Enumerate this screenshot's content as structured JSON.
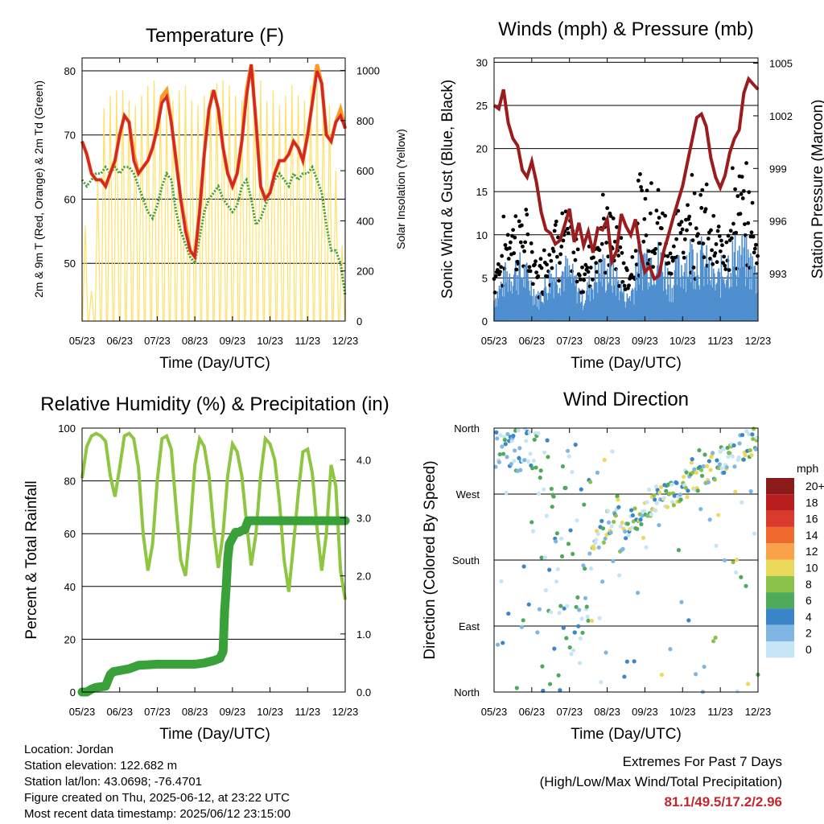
{
  "chart_data": [
    {
      "type": "line",
      "title": "Temperature (F)",
      "xlabel": "Time (Day/UTC)",
      "ylabel": "2m & 9m T (Red, Orange) & 2m Td (Green)",
      "y2label": "Solar Insolation (Yellow)",
      "x_ticks": [
        "05/23",
        "06/23",
        "07/23",
        "08/23",
        "09/23",
        "10/23",
        "11/23",
        "12/23"
      ],
      "ylim": [
        41,
        82
      ],
      "y_ticks": [
        50,
        60,
        70,
        80
      ],
      "y2lim": [
        0,
        1050
      ],
      "y2_ticks": [
        0,
        200,
        400,
        600,
        800,
        1000
      ],
      "series": [
        {
          "color": "#d62728",
          "x": [
            0,
            3,
            6,
            9,
            12,
            15,
            18,
            21,
            24,
            27,
            30,
            33,
            36,
            39,
            42,
            45,
            48,
            51,
            54,
            57,
            60,
            63,
            66,
            69,
            72,
            75,
            78,
            81,
            84,
            87,
            90,
            93,
            96,
            99,
            102,
            105,
            108,
            111,
            114,
            117,
            120,
            123,
            126,
            129,
            132,
            135,
            138,
            141,
            144,
            147,
            150,
            153,
            156,
            159,
            162,
            165,
            168
          ],
          "values": [
            69,
            67,
            64,
            63,
            63,
            62,
            64,
            66,
            70,
            73,
            72,
            66,
            64,
            65,
            66,
            68,
            71,
            75,
            76,
            72,
            66,
            60,
            55,
            52,
            51,
            58,
            67,
            74,
            77,
            74,
            68,
            64,
            62,
            64,
            69,
            76,
            81,
            72,
            62,
            60,
            61,
            64,
            66,
            66,
            67,
            69,
            68,
            66,
            70,
            75,
            80,
            78,
            70,
            69,
            72,
            73,
            71
          ]
        },
        {
          "color": "#ff9a1e",
          "x": [
            0,
            3,
            6,
            9,
            12,
            15,
            18,
            21,
            24,
            27,
            30,
            33,
            36,
            39,
            42,
            45,
            48,
            51,
            54,
            57,
            60,
            63,
            66,
            69,
            72,
            75,
            78,
            81,
            84,
            87,
            90,
            93,
            96,
            99,
            102,
            105,
            108,
            111,
            114,
            117,
            120,
            123,
            126,
            129,
            132,
            135,
            138,
            141,
            144,
            147,
            150,
            153,
            156,
            159,
            162,
            165,
            168
          ],
          "values": [
            69,
            67,
            64,
            63,
            63,
            62,
            64,
            66,
            70,
            73,
            72,
            67,
            64,
            65,
            66,
            68,
            71,
            76,
            77,
            72,
            66,
            60,
            56,
            52,
            51,
            58,
            67,
            74,
            77,
            74,
            68,
            64,
            62,
            64,
            69,
            77,
            81,
            72,
            62,
            60,
            61,
            64,
            66,
            66,
            67,
            69,
            68,
            66,
            70,
            75,
            81,
            78,
            70,
            69,
            72,
            74,
            71
          ]
        },
        {
          "color": "#3aa13a",
          "x": [
            0,
            3,
            6,
            9,
            12,
            15,
            18,
            21,
            24,
            27,
            30,
            33,
            36,
            39,
            42,
            45,
            48,
            51,
            54,
            57,
            60,
            63,
            66,
            69,
            72,
            75,
            78,
            81,
            84,
            87,
            90,
            93,
            96,
            99,
            102,
            105,
            108,
            111,
            114,
            117,
            120,
            123,
            126,
            129,
            132,
            135,
            138,
            141,
            144,
            147,
            150,
            153,
            156,
            159,
            162,
            165,
            168
          ],
          "values": [
            63,
            62,
            63,
            64,
            64,
            65,
            64,
            65,
            64,
            65,
            65,
            64,
            62,
            60,
            58,
            57,
            59,
            62,
            64,
            63,
            58,
            55,
            53,
            51,
            50,
            54,
            58,
            60,
            61,
            62,
            60,
            59,
            58,
            59,
            62,
            63,
            60,
            56,
            57,
            59,
            61,
            63,
            64,
            63,
            62,
            64,
            63,
            64,
            64,
            65,
            63,
            61,
            56,
            52,
            52,
            50,
            45
          ]
        },
        {
          "color": "#ffe066",
          "axis": "y2",
          "x": [
            2,
            6,
            10,
            14,
            18,
            22,
            26,
            30,
            34,
            38,
            42,
            46,
            50,
            54,
            58,
            62,
            66,
            70,
            74,
            78,
            82,
            86,
            90,
            94,
            98,
            102,
            106,
            110,
            114,
            118,
            122,
            126,
            130,
            134,
            138,
            142,
            146,
            150,
            154,
            158,
            162,
            166
          ],
          "values": [
            380,
            120,
            560,
            850,
            900,
            920,
            920,
            880,
            860,
            900,
            940,
            960,
            900,
            860,
            880,
            920,
            940,
            880,
            860,
            900,
            920,
            950,
            960,
            940,
            900,
            880,
            960,
            1000,
            960,
            880,
            920,
            860,
            900,
            940,
            900,
            880,
            940,
            960,
            900,
            860,
            600,
            300
          ]
        }
      ]
    },
    {
      "type": "scatter",
      "title": "Winds (mph) & Pressure (mb)",
      "xlabel": "Time (Day/UTC)",
      "ylabel": "Sonic Wind & Gust (Blue, Black)",
      "y2label": "Station Pressure (Maroon)",
      "x_ticks": [
        "05/23",
        "06/23",
        "07/23",
        "08/23",
        "09/23",
        "10/23",
        "11/23",
        "12/23"
      ],
      "ylim": [
        0,
        30.5
      ],
      "y_ticks": [
        0,
        5,
        10,
        15,
        20,
        25,
        30
      ],
      "y2lim": [
        990.3,
        1005.3
      ],
      "y2_ticks": [
        993,
        996,
        999,
        1002,
        1005
      ],
      "series": [
        {
          "color": "#9b1c1c",
          "type": "line",
          "axis": "y2",
          "x": [
            0,
            3,
            6,
            9,
            12,
            15,
            18,
            21,
            24,
            27,
            30,
            33,
            36,
            39,
            42,
            45,
            48,
            51,
            54,
            57,
            60,
            63,
            66,
            69,
            72,
            75,
            78,
            81,
            84,
            87,
            90,
            93,
            96,
            99,
            102,
            105,
            108,
            111,
            114,
            117,
            120,
            123,
            126,
            129,
            132,
            135,
            138,
            141,
            144,
            147,
            150,
            153,
            156,
            159,
            162,
            165,
            168
          ],
          "values": [
            1002.6,
            1002.4,
            1003.5,
            1001.6,
            1000.7,
            1000.3,
            998.9,
            998.5,
            999.4,
            998.2,
            996.5,
            995.5,
            995.3,
            994.7,
            994.9,
            995.8,
            996.7,
            994.8,
            995.9,
            994.6,
            995.4,
            994.2,
            995.6,
            995.5,
            996.1,
            993.7,
            994.3,
            996.4,
            995.7,
            995.2,
            996.1,
            994.3,
            993.1,
            993.4,
            992.7,
            992.9,
            994.3,
            995.2,
            996.2,
            997.1,
            998.0,
            999.3,
            1000.6,
            1001.9,
            1002.1,
            1001.4,
            999.6,
            998.5,
            997.9,
            998.6,
            999.9,
            1000.7,
            1001.2,
            1003.3,
            1004.1,
            1003.8,
            1003.5
          ]
        }
      ]
    },
    {
      "type": "line",
      "title": "Relative Humidity (%) & Precipitation (in)",
      "xlabel": "Time (Day/UTC)",
      "ylabel": "Percent & Total Rainfall",
      "x_ticks": [
        "05/23",
        "06/23",
        "07/23",
        "08/23",
        "09/23",
        "10/23",
        "11/23",
        "12/23"
      ],
      "ylim": [
        0,
        100
      ],
      "y_ticks": [
        0,
        20,
        40,
        60,
        80,
        100
      ],
      "y2lim": [
        0,
        4.545
      ],
      "y2_ticks": [
        "0.0",
        "1.0",
        "2.0",
        "3.0",
        "4.0"
      ],
      "series": [
        {
          "color": "#8ec641",
          "x": [
            0,
            3,
            6,
            9,
            12,
            15,
            18,
            21,
            24,
            27,
            30,
            33,
            36,
            39,
            42,
            45,
            48,
            51,
            54,
            57,
            60,
            63,
            66,
            69,
            72,
            75,
            78,
            81,
            84,
            87,
            90,
            93,
            96,
            99,
            102,
            105,
            108,
            111,
            114,
            117,
            120,
            123,
            126,
            129,
            132,
            135,
            138,
            141,
            144,
            147,
            150,
            153,
            156,
            159,
            162,
            165,
            168
          ],
          "values": [
            81,
            93,
            97,
            98,
            97,
            95,
            82,
            74,
            85,
            97,
            98,
            96,
            85,
            60,
            46,
            56,
            80,
            96,
            97,
            92,
            70,
            50,
            44,
            62,
            86,
            96,
            93,
            82,
            62,
            47,
            60,
            82,
            94,
            91,
            82,
            64,
            48,
            60,
            82,
            96,
            94,
            88,
            72,
            50,
            38,
            56,
            75,
            91,
            92,
            83,
            62,
            46,
            60,
            86,
            78,
            46,
            35
          ]
        },
        {
          "color": "#3aa13a",
          "axis": "y2",
          "x": [
            0,
            3,
            6,
            9,
            12,
            15,
            18,
            20,
            24,
            30,
            36,
            42,
            48,
            60,
            72,
            78,
            84,
            88,
            90,
            91,
            92,
            93,
            94,
            96,
            98,
            100,
            102,
            104,
            106,
            110,
            120,
            140,
            168
          ],
          "values": [
            0,
            0,
            0.05,
            0.08,
            0.09,
            0.1,
            0.3,
            0.35,
            0.37,
            0.4,
            0.46,
            0.47,
            0.48,
            0.48,
            0.48,
            0.5,
            0.54,
            0.58,
            0.7,
            1.4,
            1.8,
            2.3,
            2.55,
            2.65,
            2.75,
            2.75,
            2.78,
            2.8,
            2.95,
            2.95,
            2.95,
            2.95,
            2.95
          ]
        }
      ]
    },
    {
      "type": "scatter",
      "title": "Wind Direction",
      "xlabel": "Time (Day/UTC)",
      "ylabel": "Direction (Colored By Speed)",
      "x_ticks": [
        "05/23",
        "06/23",
        "07/23",
        "08/23",
        "09/23",
        "10/23",
        "11/23",
        "12/23"
      ],
      "y_ticks": [
        "North",
        "East",
        "South",
        "West",
        "North"
      ],
      "ylim": [
        0,
        360
      ],
      "legend": {
        "title": "mph",
        "labels": [
          "20+",
          "18",
          "16",
          "14",
          "12",
          "10",
          "8",
          "6",
          "4",
          "2",
          "0"
        ],
        "colors": [
          "#8b1a1a",
          "#b81e1e",
          "#d93a2b",
          "#ef6a2c",
          "#f9a24a",
          "#ead95b",
          "#8bc34a",
          "#4faa5a",
          "#3a86c8",
          "#7fb7e2",
          "#c5e5f7"
        ]
      }
    }
  ],
  "info": {
    "location": "Location: Jordan",
    "elevation": "Station elevation: 122.682 m",
    "latlon": "Station lat/lon: 43.0698; -76.4701",
    "created": "Figure created on Thu, 2025-06-12, at 23:22 UTC",
    "recent": "Most recent data timestamp: 2025/06/12 23:15:00"
  },
  "extremes": {
    "line1": "Extremes For Past 7 Days",
    "line2": "(High/Low/Max Wind/Total Precipitation)",
    "values": "81.1/49.5/17.2/2.96"
  }
}
